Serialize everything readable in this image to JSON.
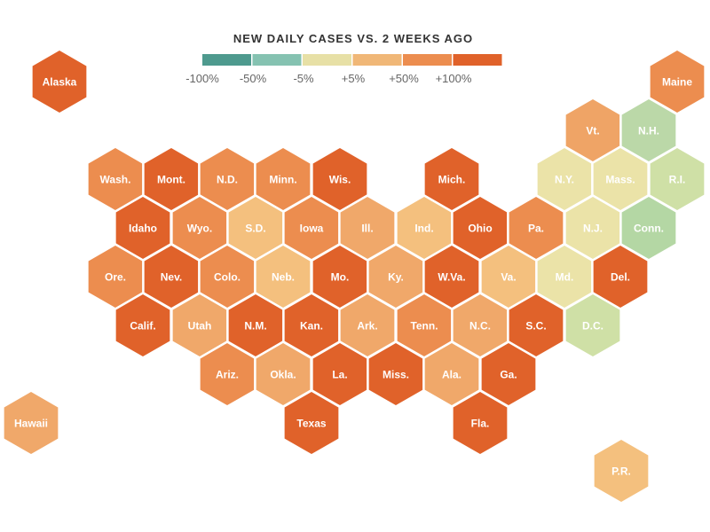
{
  "legend": {
    "title": "NEW DAILY CASES VS. 2 WEEKS AGO",
    "bins": [
      {
        "key": "n100",
        "color": "#4e9a8e"
      },
      {
        "key": "n50",
        "color": "#85c2b1"
      },
      {
        "key": "n5",
        "color": "#e7e0a6"
      },
      {
        "key": "p5",
        "color": "#f0b777"
      },
      {
        "key": "p50",
        "color": "#ec8d4f"
      },
      {
        "key": "p100",
        "color": "#e0622a"
      }
    ],
    "labels": [
      "-100%",
      "-50%",
      "-5%",
      "+5%",
      "+50%",
      "+100%"
    ]
  },
  "palette": {
    "dark_orange": "#e0622a",
    "orange": "#e8844a",
    "light_orange": "#f0a86a",
    "peach": "#f4c07e",
    "pale_yellow": "#ebe3a8",
    "pale_green": "#cfe0a6",
    "green": "#b4d7a4"
  },
  "states": [
    {
      "label": "Alaska",
      "color": "#e0622a"
    },
    {
      "label": "Maine",
      "color": "#ec8d4f"
    },
    {
      "label": "Vt.",
      "color": "#efa466"
    },
    {
      "label": "N.H.",
      "color": "#bbd8a8"
    },
    {
      "label": "Wash.",
      "color": "#ec8d4f"
    },
    {
      "label": "Mont.",
      "color": "#e0622a"
    },
    {
      "label": "N.D.",
      "color": "#ec8d4f"
    },
    {
      "label": "Minn.",
      "color": "#ec8d4f"
    },
    {
      "label": "Wis.",
      "color": "#e0622a"
    },
    {
      "label": "Mich.",
      "color": "#e0622a"
    },
    {
      "label": "N.Y.",
      "color": "#ebe3a8"
    },
    {
      "label": "Mass.",
      "color": "#ebe3a8"
    },
    {
      "label": "R.I.",
      "color": "#cfe0a6"
    },
    {
      "label": "Idaho",
      "color": "#e0622a"
    },
    {
      "label": "Wyo.",
      "color": "#ec8d4f"
    },
    {
      "label": "S.D.",
      "color": "#f4c07e"
    },
    {
      "label": "Iowa",
      "color": "#ec8d4f"
    },
    {
      "label": "Ill.",
      "color": "#f0a86a"
    },
    {
      "label": "Ind.",
      "color": "#f4c07e"
    },
    {
      "label": "Ohio",
      "color": "#e0622a"
    },
    {
      "label": "Pa.",
      "color": "#ec8d4f"
    },
    {
      "label": "N.J.",
      "color": "#ebe3a8"
    },
    {
      "label": "Conn.",
      "color": "#b4d7a4"
    },
    {
      "label": "Ore.",
      "color": "#ec8d4f"
    },
    {
      "label": "Nev.",
      "color": "#e0622a"
    },
    {
      "label": "Colo.",
      "color": "#ec8d4f"
    },
    {
      "label": "Neb.",
      "color": "#f4c07e"
    },
    {
      "label": "Mo.",
      "color": "#e0622a"
    },
    {
      "label": "Ky.",
      "color": "#f0a86a"
    },
    {
      "label": "W.Va.",
      "color": "#e0622a"
    },
    {
      "label": "Va.",
      "color": "#f4c07e"
    },
    {
      "label": "Md.",
      "color": "#ebe3a8"
    },
    {
      "label": "Del.",
      "color": "#e0622a"
    },
    {
      "label": "Calif.",
      "color": "#e0622a"
    },
    {
      "label": "Utah",
      "color": "#f0a86a"
    },
    {
      "label": "N.M.",
      "color": "#e0622a"
    },
    {
      "label": "Kan.",
      "color": "#e0622a"
    },
    {
      "label": "Ark.",
      "color": "#f0a86a"
    },
    {
      "label": "Tenn.",
      "color": "#ec8d4f"
    },
    {
      "label": "N.C.",
      "color": "#f0a86a"
    },
    {
      "label": "S.C.",
      "color": "#e0622a"
    },
    {
      "label": "D.C.",
      "color": "#cfe0a6"
    },
    {
      "label": "Ariz.",
      "color": "#ec8d4f"
    },
    {
      "label": "Okla.",
      "color": "#f0a86a"
    },
    {
      "label": "La.",
      "color": "#e0622a"
    },
    {
      "label": "Miss.",
      "color": "#e0622a"
    },
    {
      "label": "Ala.",
      "color": "#f0a86a"
    },
    {
      "label": "Ga.",
      "color": "#e0622a"
    },
    {
      "label": "Hawaii",
      "color": "#f0a86a"
    },
    {
      "label": "Texas",
      "color": "#e0622a"
    },
    {
      "label": "Fla.",
      "color": "#e0622a"
    },
    {
      "label": "P.R.",
      "color": "#f4c07e"
    }
  ]
}
